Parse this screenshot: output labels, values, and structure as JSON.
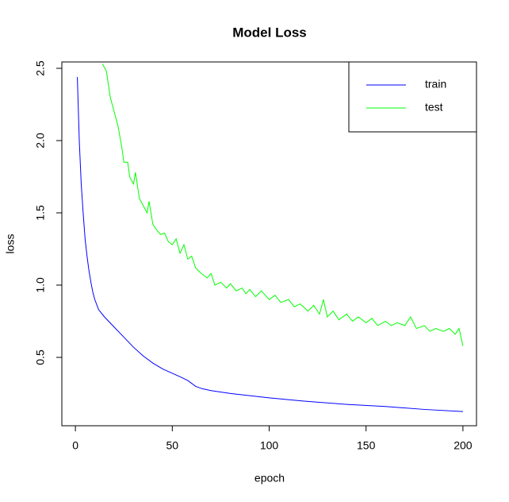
{
  "chart_data": {
    "type": "line",
    "title": "Model Loss",
    "x_label": "epoch",
    "y_label": "loss",
    "xlim": [
      -7,
      207
    ],
    "ylim": [
      0.027,
      2.544
    ],
    "xticks": [
      0,
      50,
      100,
      150,
      200
    ],
    "yticks": [
      0.5,
      {
        "value": 1,
        "label": "1.0"
      },
      1.5,
      {
        "value": 2,
        "label": "2.0"
      },
      2.5
    ],
    "legend": "top-right",
    "series": [
      {
        "name": "train",
        "color": "#0000ff",
        "x": [
          1,
          2,
          3,
          4,
          5,
          6,
          7,
          8,
          9,
          10,
          12,
          15,
          20,
          25,
          30,
          35,
          40,
          45,
          50,
          55,
          58,
          62,
          65,
          70,
          80,
          90,
          100,
          120,
          140,
          160,
          180,
          200
        ],
        "values": [
          2.44,
          2.0,
          1.7,
          1.5,
          1.32,
          1.2,
          1.1,
          1.02,
          0.95,
          0.9,
          0.83,
          0.78,
          0.71,
          0.64,
          0.57,
          0.51,
          0.46,
          0.42,
          0.39,
          0.36,
          0.34,
          0.3,
          0.285,
          0.27,
          0.25,
          0.235,
          0.22,
          0.195,
          0.175,
          0.16,
          0.14,
          0.125
        ]
      },
      {
        "name": "test",
        "color": "#00ff00",
        "x": [
          14,
          16,
          18,
          20,
          22,
          24,
          25,
          27,
          28,
          30,
          31,
          33,
          35,
          37,
          38,
          40,
          42,
          44,
          46,
          48,
          50,
          52,
          54,
          56,
          58,
          60,
          62,
          65,
          68,
          70,
          72,
          75,
          78,
          80,
          83,
          86,
          88,
          90,
          93,
          96,
          100,
          103,
          106,
          110,
          113,
          116,
          120,
          123,
          126,
          128,
          130,
          133,
          136,
          140,
          143,
          146,
          150,
          153,
          156,
          160,
          163,
          166,
          170,
          173,
          176,
          180,
          183,
          186,
          190,
          193,
          196,
          198,
          200
        ],
        "values": [
          2.53,
          2.48,
          2.3,
          2.2,
          2.1,
          1.95,
          1.85,
          1.85,
          1.75,
          1.7,
          1.78,
          1.6,
          1.55,
          1.5,
          1.58,
          1.42,
          1.38,
          1.35,
          1.36,
          1.3,
          1.28,
          1.32,
          1.22,
          1.28,
          1.18,
          1.2,
          1.12,
          1.08,
          1.05,
          1.08,
          1.0,
          1.02,
          0.98,
          1.01,
          0.96,
          0.98,
          0.94,
          0.97,
          0.92,
          0.96,
          0.9,
          0.93,
          0.88,
          0.9,
          0.85,
          0.87,
          0.82,
          0.86,
          0.8,
          0.9,
          0.78,
          0.82,
          0.76,
          0.8,
          0.75,
          0.78,
          0.74,
          0.77,
          0.72,
          0.75,
          0.72,
          0.74,
          0.72,
          0.78,
          0.7,
          0.72,
          0.68,
          0.7,
          0.68,
          0.7,
          0.66,
          0.7,
          0.58
        ]
      }
    ]
  }
}
